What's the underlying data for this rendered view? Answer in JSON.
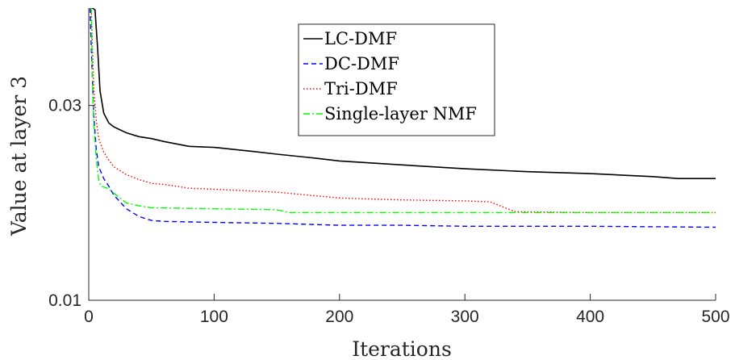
{
  "chart_data": {
    "type": "line",
    "title": "",
    "xlabel": "Iterations",
    "ylabel": "Value at layer 3",
    "xlim": [
      0,
      500
    ],
    "ylim": [
      0.01,
      0.04
    ],
    "xticks": [
      0,
      100,
      200,
      300,
      400,
      500
    ],
    "xtick_labels": [
      "0",
      "100",
      "200",
      "300",
      "400",
      "500"
    ],
    "yticks": [
      0.01,
      0.03
    ],
    "ytick_labels": [
      "0.01",
      "0.03"
    ],
    "grid": false,
    "legend_position": "top-center",
    "series": [
      {
        "name": "LC-DMF",
        "color": "#000000",
        "dash": "solid",
        "points": [
          [
            1,
            0.04
          ],
          [
            2,
            0.04
          ],
          [
            3,
            0.04
          ],
          [
            5,
            0.0398
          ],
          [
            7,
            0.036
          ],
          [
            9,
            0.0315
          ],
          [
            12,
            0.0292
          ],
          [
            16,
            0.0282
          ],
          [
            20,
            0.0278
          ],
          [
            30,
            0.0272
          ],
          [
            40,
            0.0268
          ],
          [
            50,
            0.0266
          ],
          [
            60,
            0.0263
          ],
          [
            80,
            0.0258
          ],
          [
            100,
            0.0257
          ],
          [
            130,
            0.0253
          ],
          [
            150,
            0.025
          ],
          [
            180,
            0.0246
          ],
          [
            200,
            0.0243
          ],
          [
            250,
            0.0239
          ],
          [
            300,
            0.0235
          ],
          [
            350,
            0.0232
          ],
          [
            400,
            0.023
          ],
          [
            450,
            0.0227
          ],
          [
            470,
            0.0225
          ],
          [
            500,
            0.0225
          ]
        ]
      },
      {
        "name": "DC-DMF",
        "color": "#0000ff",
        "dash": "dashed",
        "points": [
          [
            1,
            0.04
          ],
          [
            2,
            0.036
          ],
          [
            4,
            0.029
          ],
          [
            6,
            0.0255
          ],
          [
            8,
            0.0237
          ],
          [
            12,
            0.0225
          ],
          [
            16,
            0.0217
          ],
          [
            20,
            0.0208
          ],
          [
            30,
            0.0194
          ],
          [
            40,
            0.0186
          ],
          [
            50,
            0.0182
          ],
          [
            60,
            0.0181
          ],
          [
            100,
            0.018
          ],
          [
            150,
            0.0179
          ],
          [
            200,
            0.0177
          ],
          [
            250,
            0.0177
          ],
          [
            300,
            0.0176
          ],
          [
            400,
            0.0176
          ],
          [
            500,
            0.0175
          ]
        ]
      },
      {
        "name": "Tri-DMF",
        "color": "#ff0000",
        "dash": "dotted",
        "points": [
          [
            1,
            0.04
          ],
          [
            2,
            0.04
          ],
          [
            4,
            0.0318
          ],
          [
            6,
            0.0285
          ],
          [
            8,
            0.0266
          ],
          [
            12,
            0.0252
          ],
          [
            16,
            0.0244
          ],
          [
            20,
            0.0237
          ],
          [
            30,
            0.0229
          ],
          [
            40,
            0.0224
          ],
          [
            50,
            0.022
          ],
          [
            60,
            0.0219
          ],
          [
            80,
            0.0215
          ],
          [
            100,
            0.0214
          ],
          [
            150,
            0.0211
          ],
          [
            200,
            0.0205
          ],
          [
            250,
            0.0203
          ],
          [
            300,
            0.0202
          ],
          [
            320,
            0.0201
          ],
          [
            340,
            0.0191
          ],
          [
            400,
            0.019
          ],
          [
            500,
            0.019
          ]
        ]
      },
      {
        "name": "Single-layer NMF",
        "color": "#00ff00",
        "dash": "dashdot",
        "points": [
          [
            1,
            0.04
          ],
          [
            2,
            0.04
          ],
          [
            3,
            0.032
          ],
          [
            4,
            0.028
          ],
          [
            6,
            0.0245
          ],
          [
            8,
            0.0223
          ],
          [
            10,
            0.0217
          ],
          [
            15,
            0.0215
          ],
          [
            20,
            0.021
          ],
          [
            30,
            0.02
          ],
          [
            40,
            0.0197
          ],
          [
            50,
            0.0195
          ],
          [
            100,
            0.0194
          ],
          [
            150,
            0.0193
          ],
          [
            160,
            0.019
          ],
          [
            200,
            0.019
          ],
          [
            500,
            0.019
          ]
        ]
      }
    ]
  }
}
